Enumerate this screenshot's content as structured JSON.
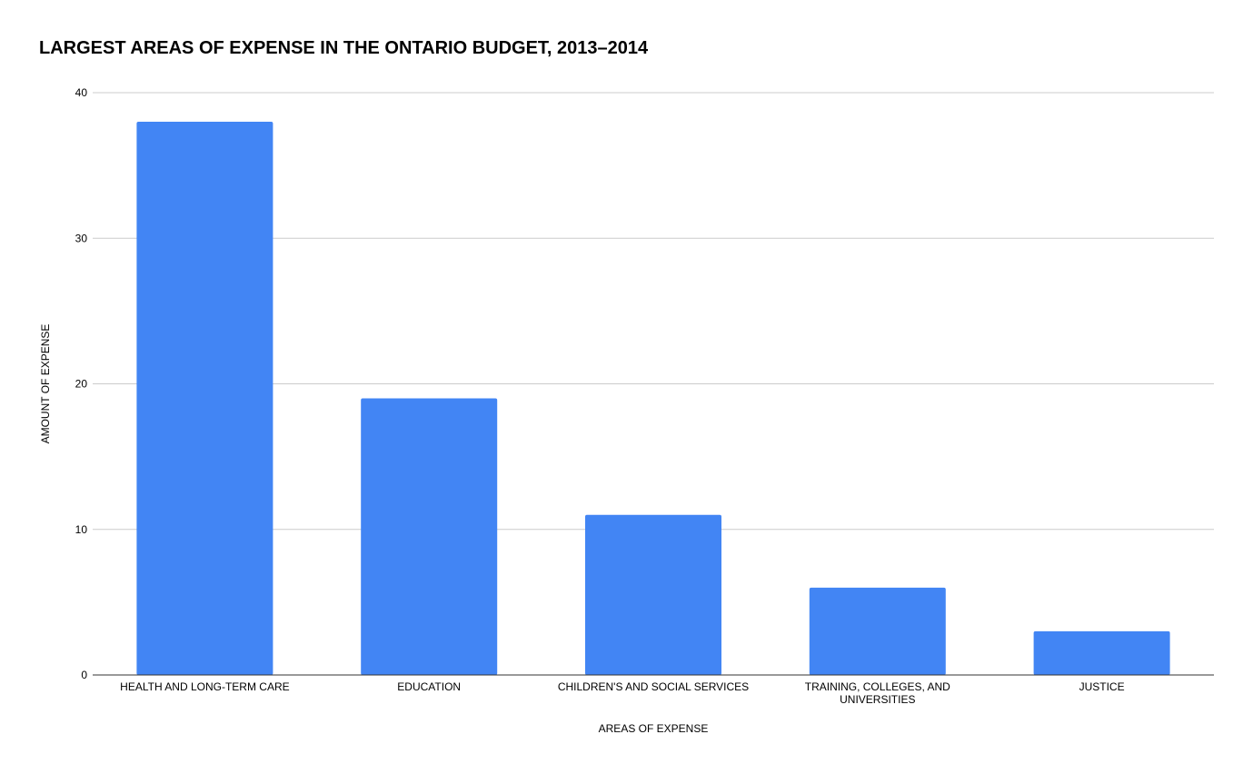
{
  "chart_data": {
    "type": "bar",
    "title": "LARGEST AREAS OF EXPENSE IN THE ONTARIO BUDGET, 2013–2014",
    "xlabel": "AREAS OF EXPENSE",
    "ylabel": "AMOUNT OF EXPENSE",
    "categories": [
      [
        "HEALTH AND LONG-TERM CARE"
      ],
      [
        "EDUCATION"
      ],
      [
        "CHILDREN'S AND SOCIAL SERVICES"
      ],
      [
        "TRAINING, COLLEGES, AND",
        "UNIVERSITIES"
      ],
      [
        "JUSTICE"
      ]
    ],
    "values": [
      38,
      19,
      11,
      6,
      3
    ],
    "ylim": [
      0,
      40
    ],
    "yticks": [
      "0",
      "10",
      "20",
      "30",
      "40"
    ],
    "grid": true,
    "legend": "none",
    "bar_color": "#4285f4",
    "grid_color": "#cccccc",
    "axis_color": "#333333"
  }
}
